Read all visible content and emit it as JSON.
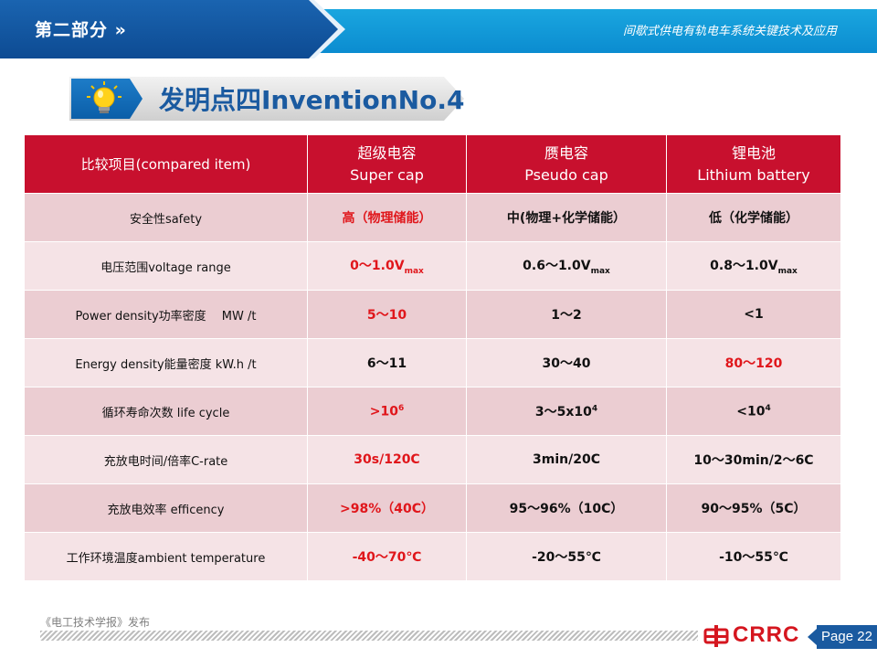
{
  "header": {
    "section_title": "第二部分",
    "arrow_icon": "double-chevron-right-icon",
    "subtitle": "间歇式供电有轨电车系统关键技术及应用"
  },
  "banner": {
    "icon": "lightbulb-icon",
    "title": "发明点四InventionNo.4"
  },
  "table": {
    "header": {
      "item": "比较项目(compared item)",
      "col1": {
        "zh": "超级电容",
        "en": "Super cap"
      },
      "col2": {
        "zh": "赝电容",
        "en": "Pseudo cap"
      },
      "col3": {
        "zh": "锂电池",
        "en": "Lithium battery"
      }
    },
    "rows": [
      {
        "item": "安全性safety",
        "c1": "高（物理储能）",
        "c2": "中(物理+化学储能）",
        "c3": "低（化学储能）"
      },
      {
        "item": "电压范围voltage range",
        "c1": "0～1.0V",
        "c1_sub": "max",
        "c2": "0.6～1.0V",
        "c2_sub": "max",
        "c3": "0.8～1.0V",
        "c3_sub": "max"
      },
      {
        "item": "Power density功率密度　 MW /t",
        "c1": "5～10",
        "c2": "1～2",
        "c3": "<1"
      },
      {
        "item": "Energy density能量密度 kW.h /t",
        "c1": "6～11",
        "c2": "30～40",
        "c3": "80～120"
      },
      {
        "item": "循环寿命次数 life cycle",
        "c1": ">10",
        "c1_sup": "6",
        "c2": "3～5x10",
        "c2_sup": "4",
        "c3": "<10",
        "c3_sup": "4"
      },
      {
        "item": "充放电时间/倍率C-rate",
        "c1": "30s/120C",
        "c2": "3min/20C",
        "c3": "10～30min/2～6C"
      },
      {
        "item": "充放电效率 efficency",
        "c1": ">98%（40C）",
        "c2": "95～96%（10C）",
        "c3": "90～95%（5C）"
      },
      {
        "item": "工作环境温度ambient temperature",
        "c1": "-40～70℃",
        "c2": "-20～55℃",
        "c3": "-10～55℃"
      }
    ]
  },
  "footer": {
    "source": "《电工技术学报》发布",
    "logo_text": "CRRC",
    "logo_icon": "crrc-logo-icon",
    "page": "Page 22"
  },
  "colors": {
    "header_red": "#c8102e",
    "highlight_red": "#e0161b",
    "brand_blue": "#1a5aa0"
  }
}
